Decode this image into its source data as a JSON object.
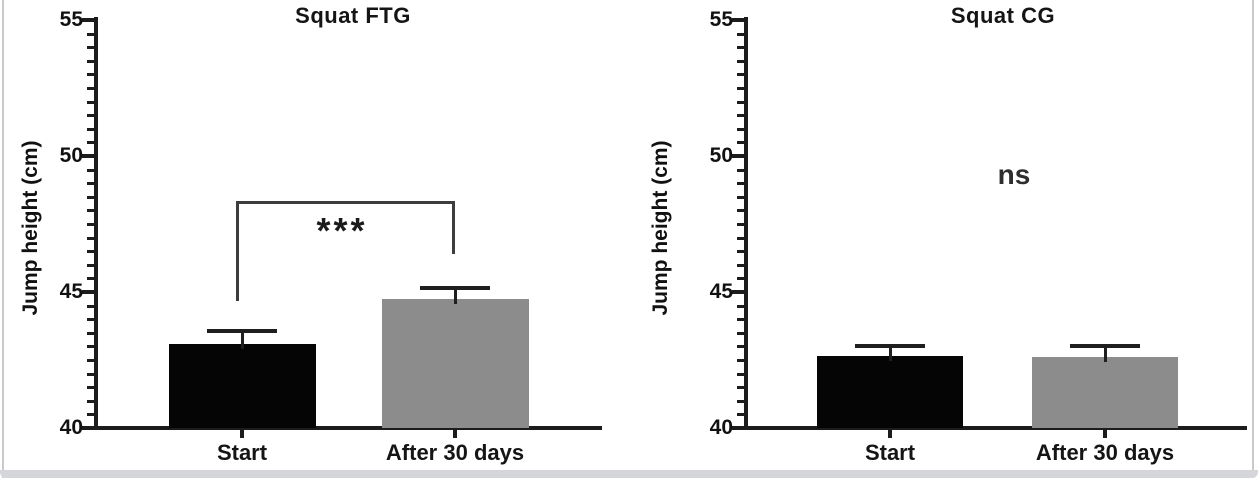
{
  "frame": {
    "background": "#ffffff",
    "edge_color": "#c8cacc",
    "bottom_bar_color": "#d4d6d9"
  },
  "chart_data": [
    {
      "type": "bar",
      "title": "Squat FTG",
      "ylabel": "Jump height (cm)",
      "xlabel": "",
      "categories": [
        "Start",
        "After 30 days"
      ],
      "values": [
        43.1,
        44.75
      ],
      "errors_upper": [
        0.45,
        0.4
      ],
      "bar_colors": [
        "#050505",
        "#8c8c8c"
      ],
      "ylim": [
        40,
        55
      ],
      "yticks": [
        40,
        45,
        50,
        55
      ],
      "minor_tick_step": 0.5,
      "grid": "off",
      "significance": {
        "label": "***",
        "bracket_top_y": 48.3,
        "left_arm_bottom_y": 44.7,
        "right_arm_bottom_y": 46.4
      }
    },
    {
      "type": "bar",
      "title": "Squat CG",
      "ylabel": "Jump height (cm)",
      "xlabel": "",
      "categories": [
        "Start",
        "After 30 days"
      ],
      "values": [
        42.65,
        42.6
      ],
      "errors_upper": [
        0.35,
        0.4
      ],
      "bar_colors": [
        "#050505",
        "#8c8c8c"
      ],
      "ylim": [
        40,
        55
      ],
      "yticks": [
        40,
        45,
        50,
        55
      ],
      "minor_tick_step": 0.5,
      "grid": "off",
      "annotation": {
        "text": "ns",
        "y": 49.3
      }
    }
  ]
}
